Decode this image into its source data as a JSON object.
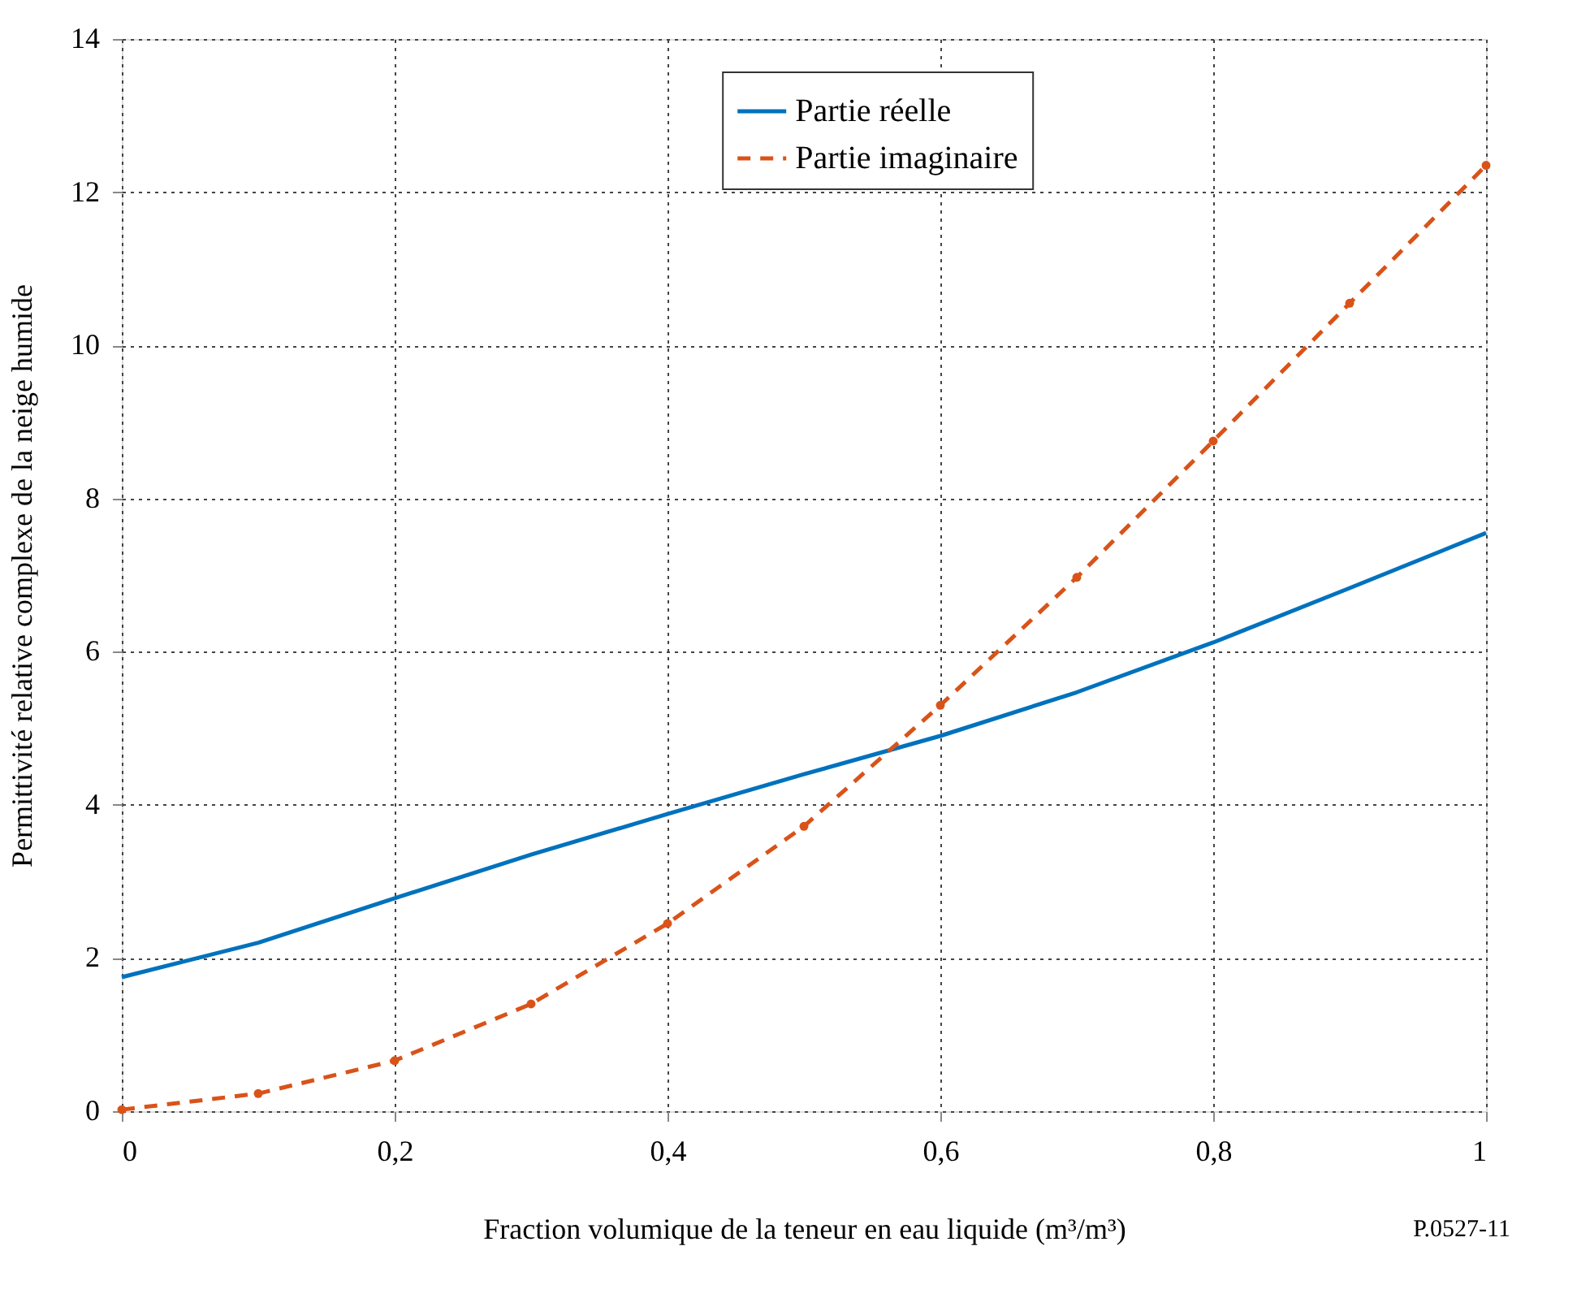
{
  "chart_data": {
    "type": "line",
    "xlabel": "Fraction volumique de la teneur en eau liquide (m³/m³)",
    "ylabel": "Permittivité relative complexe de la neige humide",
    "x": [
      0,
      0.1,
      0.2,
      0.3,
      0.4,
      0.5,
      0.6,
      0.7,
      0.8,
      0.9,
      1
    ],
    "series": [
      {
        "name": "Partie réelle",
        "color": "#0072bd",
        "line_style": "solid",
        "marker": "none",
        "values": [
          1.75,
          2.2,
          2.78,
          3.35,
          3.88,
          4.4,
          4.9,
          5.47,
          6.12,
          6.83,
          7.55
        ]
      },
      {
        "name": "Partie imaginaire",
        "color": "#d95319",
        "line_style": "dashed",
        "marker": "circle",
        "values": [
          0.02,
          0.23,
          0.66,
          1.4,
          2.45,
          3.72,
          5.3,
          6.97,
          8.75,
          10.55,
          12.35
        ]
      }
    ],
    "xlim": [
      0,
      1
    ],
    "xticks": [
      0,
      {
        "value": 0.2,
        "label": "0,2"
      },
      {
        "value": 0.4,
        "label": "0,4"
      },
      {
        "value": 0.6,
        "label": "0,6"
      },
      {
        "value": 0.8,
        "label": "0,8"
      },
      1
    ],
    "ylim": [
      0,
      14
    ],
    "yticks": [
      0,
      2,
      4,
      6,
      8,
      10,
      12,
      14
    ],
    "grid": true,
    "legend": "top",
    "annotations": [
      "P.0527-11"
    ]
  }
}
